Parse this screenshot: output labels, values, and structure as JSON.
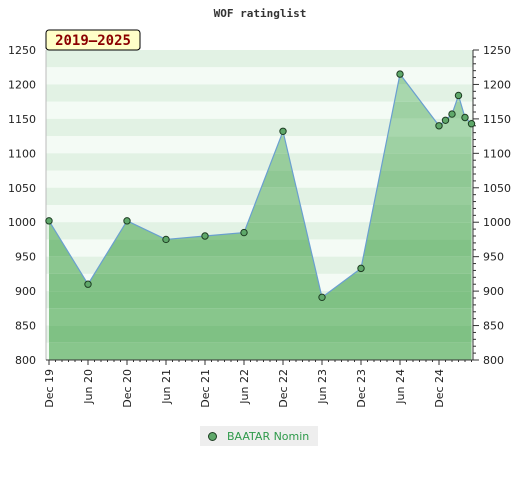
{
  "chart_data": {
    "type": "area",
    "title": "WOF ratinglist",
    "badge": "2019–2025",
    "xlabel": "",
    "ylabel": "",
    "ylim": [
      800,
      1250
    ],
    "yticks": [
      800,
      850,
      900,
      950,
      1000,
      1050,
      1100,
      1150,
      1200,
      1250
    ],
    "x_tick_labels": [
      "Dec 19",
      "Jun 20",
      "Dec 20",
      "Jun 21",
      "Dec 21",
      "Jun 22",
      "Dec 22",
      "Jun 23",
      "Dec 23",
      "Jun 24",
      "Dec 24"
    ],
    "x_tick_dates": [
      "2019-12",
      "2020-06",
      "2020-12",
      "2021-06",
      "2021-12",
      "2022-06",
      "2022-12",
      "2023-06",
      "2023-12",
      "2024-06",
      "2024-12"
    ],
    "grid": false,
    "legend_position": "bottom-center",
    "series": [
      {
        "name": "BAATAR Nomin",
        "color": "#5fa86a",
        "line_color": "#6a9fd0",
        "points": [
          {
            "x": "2019-12",
            "y": 1002
          },
          {
            "x": "2020-06",
            "y": 910
          },
          {
            "x": "2020-12",
            "y": 1002
          },
          {
            "x": "2021-06",
            "y": 975
          },
          {
            "x": "2021-12",
            "y": 980
          },
          {
            "x": "2022-06",
            "y": 985
          },
          {
            "x": "2022-12",
            "y": 1132
          },
          {
            "x": "2023-06",
            "y": 891
          },
          {
            "x": "2023-12",
            "y": 933
          },
          {
            "x": "2024-06",
            "y": 1215
          },
          {
            "x": "2024-12",
            "y": 1140
          },
          {
            "x": "2025-01",
            "y": 1148
          },
          {
            "x": "2025-02",
            "y": 1157
          },
          {
            "x": "2025-03",
            "y": 1184
          },
          {
            "x": "2025-04",
            "y": 1152
          },
          {
            "x": "2025-05",
            "y": 1143
          }
        ]
      }
    ]
  }
}
